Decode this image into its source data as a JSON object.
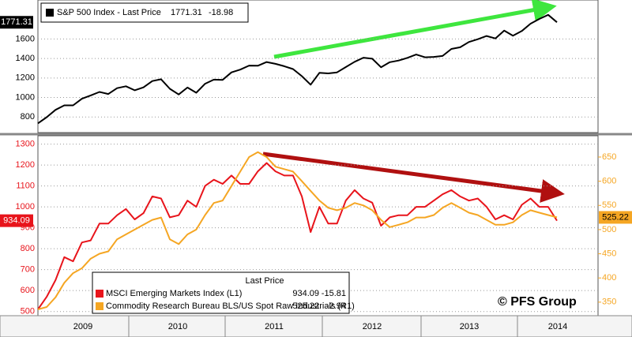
{
  "chart_data": [
    {
      "type": "line",
      "series": [
        {
          "name": "S&P 500 Index - Last Price",
          "color": "#000000",
          "change": -18.98,
          "values": [
            735,
            798,
            873,
            919,
            919,
            987,
            1021,
            1057,
            1036,
            1096,
            1115,
            1074,
            1104,
            1169,
            1187,
            1089,
            1031,
            1102,
            1049,
            1141,
            1183,
            1181,
            1258,
            1286,
            1327,
            1326,
            1364,
            1345,
            1321,
            1292,
            1219,
            1131,
            1253,
            1247,
            1258,
            1312,
            1366,
            1408,
            1398,
            1310,
            1362,
            1379,
            1407,
            1441,
            1412,
            1416,
            1426,
            1498,
            1515,
            1569,
            1598,
            1631,
            1606,
            1686,
            1633,
            1682,
            1757,
            1806,
            1848,
            1771.31
          ]
        }
      ],
      "ylim": [
        640,
        2000
      ],
      "yticks": [
        800,
        1000,
        1200,
        1400,
        1600
      ],
      "grid": true
    },
    {
      "type": "line",
      "legend_title": "Last Price",
      "series": [
        {
          "name": "MSCI Emerging Markets Index (L1)",
          "color": "#e8141b",
          "axis": "y",
          "change": -15.81,
          "values": [
            510,
            570,
            650,
            760,
            740,
            830,
            840,
            920,
            920,
            960,
            990,
            940,
            970,
            1050,
            1040,
            950,
            960,
            1030,
            1000,
            1100,
            1130,
            1110,
            1150,
            1110,
            1110,
            1170,
            1210,
            1170,
            1150,
            1150,
            1050,
            880,
            1000,
            920,
            920,
            1030,
            1080,
            1040,
            1020,
            910,
            950,
            960,
            960,
            1000,
            1000,
            1030,
            1060,
            1080,
            1050,
            1030,
            1040,
            1000,
            940,
            960,
            940,
            1010,
            1040,
            1000,
            1000,
            934.09
          ]
        },
        {
          "name": "Commodity Research Bureau BLS/US Spot Raw Industrials (R1)",
          "color": "#f5a623",
          "axis": "y2",
          "change": -2.94,
          "values": [
            335,
            340,
            360,
            390,
            410,
            420,
            440,
            450,
            455,
            480,
            490,
            500,
            510,
            520,
            525,
            480,
            470,
            490,
            500,
            530,
            555,
            560,
            590,
            620,
            650,
            660,
            650,
            630,
            625,
            620,
            600,
            580,
            560,
            545,
            540,
            545,
            555,
            550,
            540,
            520,
            505,
            510,
            515,
            525,
            525,
            530,
            545,
            555,
            545,
            535,
            530,
            520,
            510,
            510,
            515,
            530,
            540,
            535,
            530,
            525.22
          ]
        }
      ],
      "ylim": [
        480,
        1340
      ],
      "yticks": [
        500,
        600,
        700,
        800,
        900,
        1000,
        1100,
        1200,
        1300
      ],
      "y2lim": [
        322,
        694
      ],
      "y2ticks": [
        350,
        400,
        450,
        500,
        550,
        600,
        650
      ],
      "grid": true,
      "x_labels": [
        "2009",
        "2010",
        "2011",
        "2012",
        "2013",
        "2014"
      ],
      "watermark": "© PFS Group"
    }
  ]
}
